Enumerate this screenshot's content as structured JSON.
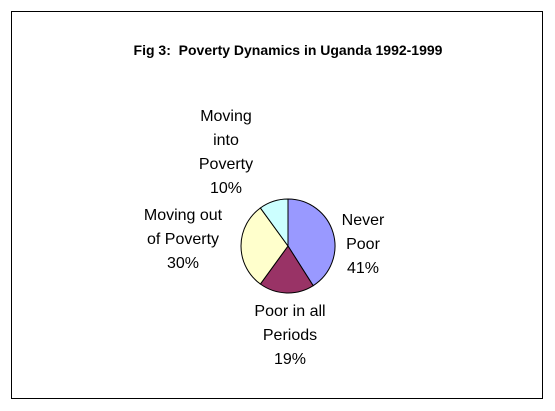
{
  "chart_data": {
    "type": "pie",
    "title": "Fig 3:  Poverty Dynamics in Uganda 1992-1999",
    "categories": [
      "Never Poor",
      "Poor in all Periods",
      "Moving out of Poverty",
      "Moving into Poverty"
    ],
    "values": [
      41,
      19,
      30,
      10
    ],
    "value_labels": [
      "41%",
      "19%",
      "30%",
      "10%"
    ],
    "colors": [
      "#9999ff",
      "#993366",
      "#ffffcc",
      "#ccffff"
    ]
  }
}
